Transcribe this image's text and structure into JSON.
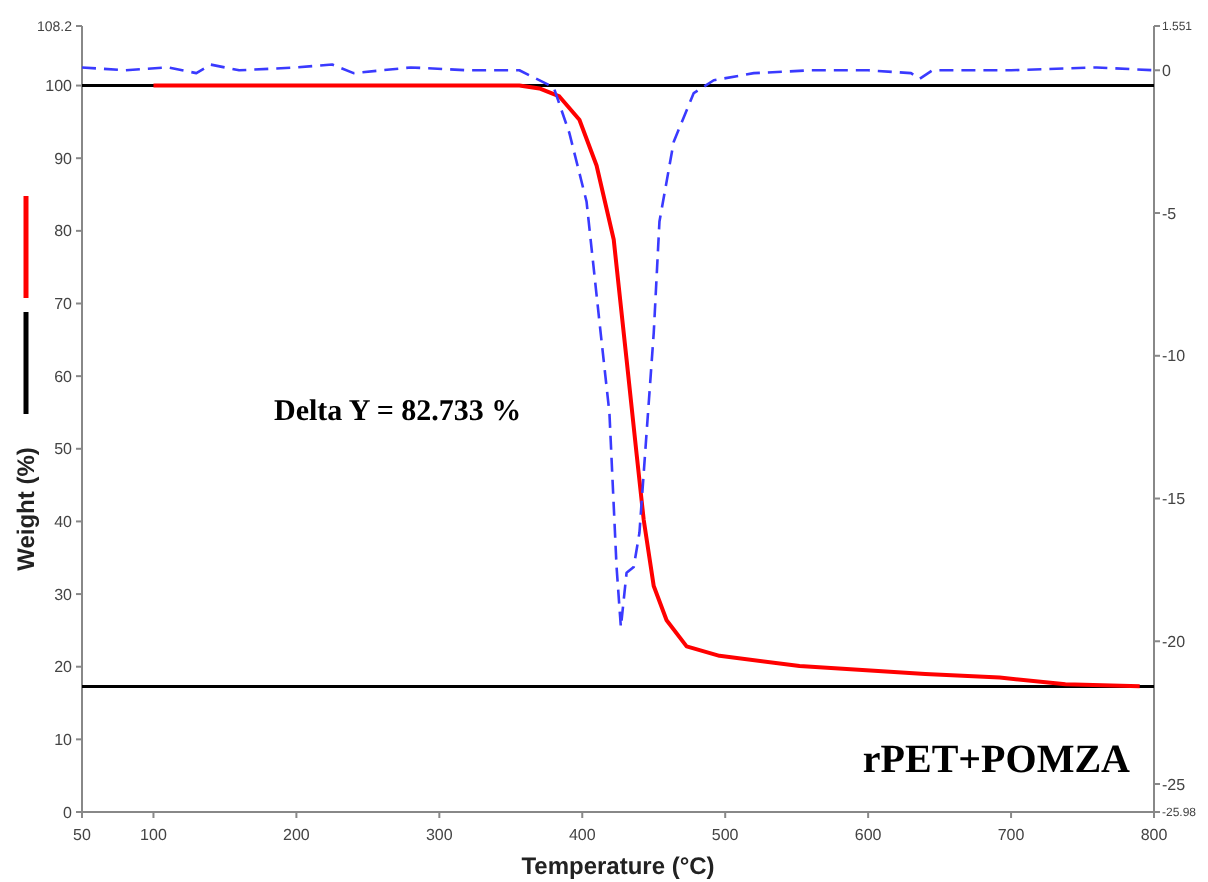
{
  "chart_data": {
    "type": "line",
    "xlabel": "Temperature (°C)",
    "ylabel": "Weight (%)",
    "xlim": [
      50,
      800
    ],
    "xticks": [
      50,
      100,
      200,
      300,
      400,
      500,
      600,
      700,
      800
    ],
    "ylim": [
      0,
      108.2
    ],
    "yticks": [
      0,
      10,
      20,
      30,
      40,
      50,
      60,
      70,
      80,
      90,
      100,
      108.2
    ],
    "y2lim": [
      -25.98,
      1.551
    ],
    "y2ticks": [
      -25.98,
      -25,
      -20,
      -15,
      -10,
      -5,
      0,
      1.551
    ],
    "grid": false,
    "marker": "none",
    "ref_lines": [
      {
        "axis": "y",
        "value": 100,
        "color": "#000000"
      },
      {
        "axis": "y",
        "value": 17.267,
        "color": "#000000"
      }
    ],
    "annotations": [
      "Delta Y = 82.733 %",
      "rPET+POMZA"
    ],
    "series": [
      {
        "color": "#ff0000",
        "line_style": "solid",
        "x": [
          100,
          150,
          200,
          250,
          300,
          356,
          370,
          384,
          398,
          410,
          422,
          431,
          438,
          443,
          450,
          459,
          473,
          496,
          552,
          640,
          692,
          738,
          790
        ],
        "values": [
          100,
          100,
          100,
          100,
          100,
          100,
          99.6,
          98.5,
          95.3,
          89,
          78.8,
          62.3,
          49.3,
          40.2,
          31.1,
          26.4,
          22.8,
          21.5,
          20.1,
          19,
          18.5,
          17.6,
          17.3
        ]
      },
      {
        "color": "#3a3aff",
        "line_style": "dashed",
        "axis": "y2",
        "x": [
          50,
          80,
          110,
          130,
          140,
          160,
          200,
          225,
          240,
          280,
          320,
          356,
          380,
          391,
          403,
          412,
          419,
          424,
          427,
          431,
          436,
          440,
          445,
          450,
          454,
          464,
          478,
          492,
          520,
          560,
          600,
          630,
          636,
          645,
          700,
          760,
          800
        ],
        "values": [
          0.1,
          0,
          0.1,
          -0.1,
          0.2,
          0,
          0.1,
          0.2,
          -0.1,
          0.1,
          0,
          0,
          -0.6,
          -2.2,
          -4.6,
          -8.8,
          -12,
          -17.4,
          -19.5,
          -17.6,
          -17.4,
          -16.2,
          -12.7,
          -9.2,
          -5.3,
          -2.5,
          -0.8,
          -0.35,
          -0.1,
          0,
          0,
          -0.1,
          -0.3,
          0,
          0,
          0.1,
          0
        ]
      }
    ]
  }
}
